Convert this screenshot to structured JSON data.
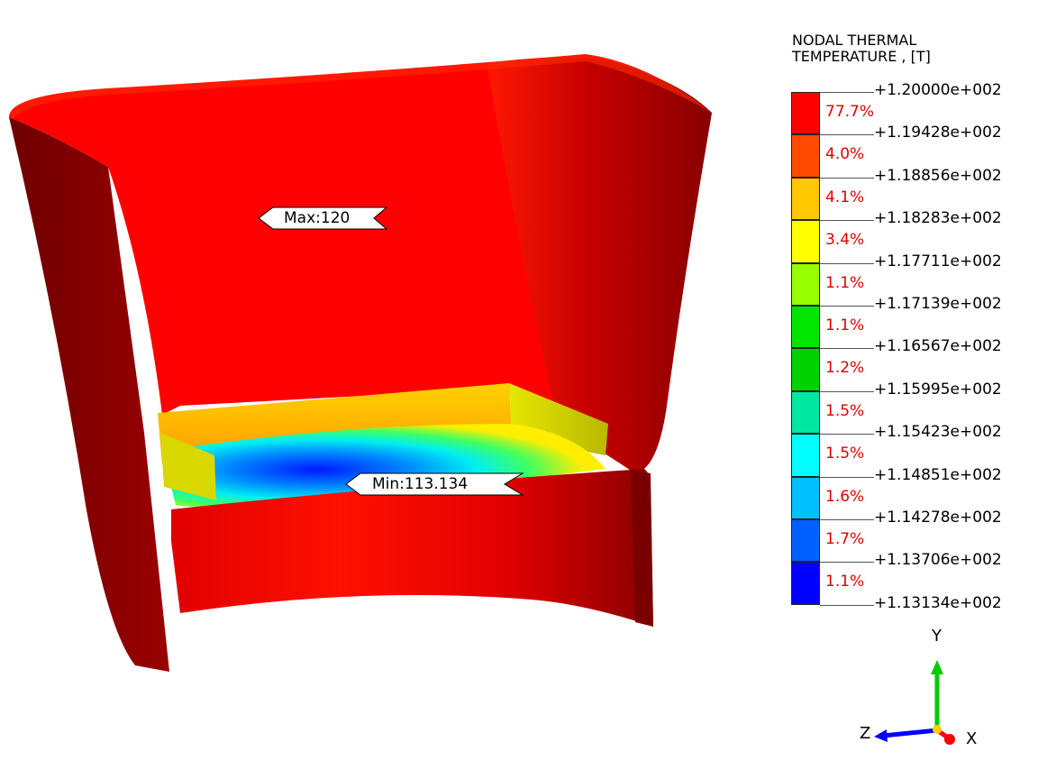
{
  "legend": {
    "title": "NODAL THERMAL\nTEMPERATURE , [T]",
    "bands": [
      {
        "color": "#ff0000",
        "percent": "77.7%"
      },
      {
        "color": "#ff4a00",
        "percent": "4.0%"
      },
      {
        "color": "#ffc800",
        "percent": "4.1%"
      },
      {
        "color": "#ffff00",
        "percent": "3.4%"
      },
      {
        "color": "#96ff00",
        "percent": "1.1%"
      },
      {
        "color": "#00e600",
        "percent": "1.1%"
      },
      {
        "color": "#00d000",
        "percent": "1.2%"
      },
      {
        "color": "#00e8a0",
        "percent": "1.5%"
      },
      {
        "color": "#00ffff",
        "percent": "1.5%"
      },
      {
        "color": "#00c0ff",
        "percent": "1.6%"
      },
      {
        "color": "#0060ff",
        "percent": "1.7%"
      },
      {
        "color": "#0000ff",
        "percent": "1.1%"
      }
    ],
    "ticks": [
      "+1.20000e+002",
      "+1.19428e+002",
      "+1.18856e+002",
      "+1.18283e+002",
      "+1.17711e+002",
      "+1.17139e+002",
      "+1.16567e+002",
      "+1.15995e+002",
      "+1.15423e+002",
      "+1.14851e+002",
      "+1.14278e+002",
      "+1.13706e+002",
      "+1.13134e+002"
    ]
  },
  "callouts": {
    "max_label": "Max:120",
    "min_label": "Min:113.134"
  },
  "triad": {
    "y_label": "Y",
    "z_label": "Z",
    "x_label": "X",
    "y_color": "#00cc00",
    "z_color": "#0000ff",
    "x_color": "#ff0000"
  }
}
